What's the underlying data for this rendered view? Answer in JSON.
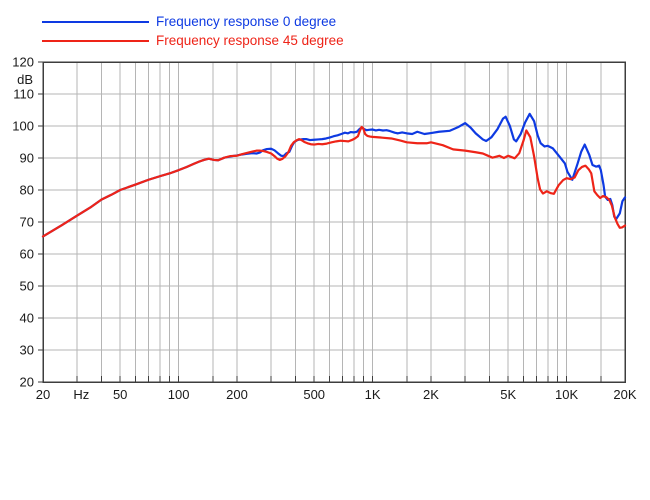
{
  "legend": {
    "items": [
      {
        "id": "0deg",
        "label": "Frequency response 0 degree",
        "color": "#0e3ae2"
      },
      {
        "id": "45deg",
        "label": "Frequency response 45 degree",
        "color": "#ee2418"
      }
    ]
  },
  "chart_data": {
    "type": "line",
    "title": "",
    "x_axis": {
      "scale": "log",
      "min": 20,
      "max": 20000,
      "unit_label": "Hz",
      "unit_label_freq": 31.5,
      "tick_labels": [
        {
          "f": 20,
          "label": "20"
        },
        {
          "f": 50,
          "label": "50"
        },
        {
          "f": 100,
          "label": "100"
        },
        {
          "f": 200,
          "label": "200"
        },
        {
          "f": 500,
          "label": "500"
        },
        {
          "f": 1000,
          "label": "1K"
        },
        {
          "f": 2000,
          "label": "2K"
        },
        {
          "f": 5000,
          "label": "5K"
        },
        {
          "f": 10000,
          "label": "10K"
        },
        {
          "f": 20000,
          "label": "20K"
        }
      ],
      "minor_grid_pattern": [
        1,
        1.5,
        2,
        3,
        4,
        5,
        6,
        7,
        8,
        9
      ]
    },
    "y_axis": {
      "min": 20,
      "max": 120,
      "step": 10,
      "unit_label": "dB",
      "tick_labels": [
        "120",
        "110",
        "100",
        "90",
        "80",
        "70",
        "60",
        "50",
        "40",
        "30",
        "20"
      ]
    },
    "grid_on": true,
    "grid_color": "#b5b5b5",
    "axis_color": "#3d3d3d",
    "legend_position": "top-left",
    "series": [
      {
        "name": "Frequency response 0 degree",
        "color": "#0e3ae2",
        "points": [
          [
            20,
            65.5
          ],
          [
            25,
            69
          ],
          [
            30,
            72
          ],
          [
            35,
            74.5
          ],
          [
            40,
            77
          ],
          [
            45,
            78.5
          ],
          [
            50,
            80
          ],
          [
            60,
            81.7
          ],
          [
            70,
            83.2
          ],
          [
            80,
            84.3
          ],
          [
            90,
            85.2
          ],
          [
            100,
            86.2
          ],
          [
            110,
            87.2
          ],
          [
            120,
            88.2
          ],
          [
            128,
            88.9
          ],
          [
            135,
            89.4
          ],
          [
            143,
            89.8
          ],
          [
            152,
            89.4
          ],
          [
            160,
            89.3
          ],
          [
            172,
            90.1
          ],
          [
            185,
            90.5
          ],
          [
            200,
            90.8
          ],
          [
            212,
            91.1
          ],
          [
            225,
            91.3
          ],
          [
            240,
            91.5
          ],
          [
            252,
            91.4
          ],
          [
            262,
            91.7
          ],
          [
            272,
            92.4
          ],
          [
            285,
            92.8
          ],
          [
            300,
            92.9
          ],
          [
            312,
            92.4
          ],
          [
            325,
            91.5
          ],
          [
            338,
            90.7
          ],
          [
            348,
            90.6
          ],
          [
            360,
            91.5
          ],
          [
            372,
            91.9
          ],
          [
            385,
            93.9
          ],
          [
            395,
            95
          ],
          [
            410,
            95.6
          ],
          [
            425,
            95.8
          ],
          [
            440,
            95.9
          ],
          [
            455,
            95.9
          ],
          [
            475,
            95.6
          ],
          [
            500,
            95.7
          ],
          [
            525,
            95.8
          ],
          [
            550,
            95.9
          ],
          [
            575,
            96.1
          ],
          [
            600,
            96.4
          ],
          [
            630,
            96.8
          ],
          [
            660,
            97.1
          ],
          [
            690,
            97.5
          ],
          [
            720,
            97.9
          ],
          [
            745,
            97.7
          ],
          [
            770,
            98.1
          ],
          [
            800,
            98
          ],
          [
            830,
            98.2
          ],
          [
            858,
            99.1
          ],
          [
            880,
            99.5
          ],
          [
            905,
            99
          ],
          [
            930,
            98.7
          ],
          [
            960,
            98.8
          ],
          [
            1000,
            98.9
          ],
          [
            1040,
            98.6
          ],
          [
            1080,
            98.8
          ],
          [
            1130,
            98.6
          ],
          [
            1180,
            98.7
          ],
          [
            1230,
            98.4
          ],
          [
            1300,
            97.9
          ],
          [
            1350,
            97.7
          ],
          [
            1420,
            98
          ],
          [
            1500,
            97.7
          ],
          [
            1600,
            97.5
          ],
          [
            1700,
            98.2
          ],
          [
            1850,
            97.5
          ],
          [
            2000,
            97.8
          ],
          [
            2200,
            98.2
          ],
          [
            2500,
            98.5
          ],
          [
            2750,
            99.6
          ],
          [
            3000,
            100.9
          ],
          [
            3200,
            99.5
          ],
          [
            3400,
            97.7
          ],
          [
            3700,
            95.8
          ],
          [
            3850,
            95.3
          ],
          [
            4100,
            96.5
          ],
          [
            4400,
            99
          ],
          [
            4700,
            102.3
          ],
          [
            4850,
            102.9
          ],
          [
            5100,
            100
          ],
          [
            5350,
            95.8
          ],
          [
            5500,
            95.2
          ],
          [
            5800,
            97.5
          ],
          [
            6100,
            101
          ],
          [
            6450,
            103.8
          ],
          [
            6800,
            101.5
          ],
          [
            7100,
            97
          ],
          [
            7350,
            94.6
          ],
          [
            7700,
            93.6
          ],
          [
            8000,
            93.8
          ],
          [
            8500,
            93
          ],
          [
            9200,
            90.4
          ],
          [
            9800,
            88.3
          ],
          [
            10100,
            85.7
          ],
          [
            10700,
            83.2
          ],
          [
            11400,
            88.3
          ],
          [
            11900,
            92
          ],
          [
            12400,
            94.2
          ],
          [
            13100,
            90.9
          ],
          [
            13600,
            87.8
          ],
          [
            14200,
            87.3
          ],
          [
            14700,
            87.6
          ],
          [
            15000,
            86.3
          ],
          [
            15500,
            81.6
          ],
          [
            15800,
            77.9
          ],
          [
            16300,
            76.9
          ],
          [
            16800,
            77.2
          ],
          [
            17200,
            75.3
          ],
          [
            17600,
            71.7
          ],
          [
            18000,
            70.9
          ],
          [
            18800,
            72.7
          ],
          [
            19400,
            76.5
          ],
          [
            20000,
            77.7
          ]
        ]
      },
      {
        "name": "Frequency response 45 degree",
        "color": "#ee2418",
        "points": [
          [
            20,
            65.5
          ],
          [
            25,
            69
          ],
          [
            30,
            72
          ],
          [
            35,
            74.5
          ],
          [
            40,
            77
          ],
          [
            45,
            78.5
          ],
          [
            50,
            80
          ],
          [
            60,
            81.7
          ],
          [
            70,
            83.2
          ],
          [
            80,
            84.3
          ],
          [
            90,
            85.2
          ],
          [
            100,
            86.2
          ],
          [
            110,
            87.2
          ],
          [
            120,
            88.2
          ],
          [
            128,
            88.9
          ],
          [
            135,
            89.4
          ],
          [
            143,
            89.8
          ],
          [
            152,
            89.4
          ],
          [
            160,
            89.3
          ],
          [
            172,
            90.1
          ],
          [
            185,
            90.6
          ],
          [
            200,
            90.7
          ],
          [
            212,
            91.2
          ],
          [
            225,
            91.6
          ],
          [
            240,
            92
          ],
          [
            252,
            92.3
          ],
          [
            262,
            92.3
          ],
          [
            272,
            92.2
          ],
          [
            285,
            91.9
          ],
          [
            300,
            91.4
          ],
          [
            312,
            90.6
          ],
          [
            322,
            89.8
          ],
          [
            332,
            89.4
          ],
          [
            342,
            89.7
          ],
          [
            355,
            90.5
          ],
          [
            368,
            91.8
          ],
          [
            380,
            93.8
          ],
          [
            392,
            94.9
          ],
          [
            405,
            95.5
          ],
          [
            418,
            95.9
          ],
          [
            430,
            95.6
          ],
          [
            445,
            95
          ],
          [
            462,
            94.6
          ],
          [
            480,
            94.3
          ],
          [
            500,
            94.2
          ],
          [
            525,
            94.4
          ],
          [
            550,
            94.3
          ],
          [
            580,
            94.5
          ],
          [
            615,
            94.9
          ],
          [
            650,
            95.2
          ],
          [
            685,
            95.4
          ],
          [
            720,
            95.3
          ],
          [
            750,
            95.2
          ],
          [
            780,
            95.6
          ],
          [
            810,
            96.1
          ],
          [
            840,
            96.8
          ],
          [
            860,
            98.5
          ],
          [
            878,
            99.7
          ],
          [
            895,
            99.3
          ],
          [
            915,
            97.5
          ],
          [
            940,
            96.9
          ],
          [
            970,
            96.7
          ],
          [
            1000,
            96.6
          ],
          [
            1100,
            96.4
          ],
          [
            1250,
            96.1
          ],
          [
            1400,
            95.4
          ],
          [
            1500,
            94.9
          ],
          [
            1700,
            94.6
          ],
          [
            1900,
            94.6
          ],
          [
            2000,
            94.9
          ],
          [
            2100,
            94.6
          ],
          [
            2300,
            94
          ],
          [
            2600,
            92.7
          ],
          [
            3000,
            92.3
          ],
          [
            3400,
            91.8
          ],
          [
            3700,
            91.4
          ],
          [
            3900,
            90.8
          ],
          [
            4150,
            90.1
          ],
          [
            4500,
            90.7
          ],
          [
            4750,
            90
          ],
          [
            5000,
            90.7
          ],
          [
            5200,
            90.3
          ],
          [
            5400,
            89.9
          ],
          [
            5700,
            91.5
          ],
          [
            6000,
            95.5
          ],
          [
            6200,
            98.6
          ],
          [
            6500,
            96.5
          ],
          [
            6800,
            90.5
          ],
          [
            7100,
            83.5
          ],
          [
            7300,
            80.2
          ],
          [
            7550,
            78.9
          ],
          [
            7900,
            79.6
          ],
          [
            8300,
            79
          ],
          [
            8600,
            78.8
          ],
          [
            9100,
            81.5
          ],
          [
            9600,
            83.1
          ],
          [
            10000,
            83.7
          ],
          [
            10500,
            83.4
          ],
          [
            11000,
            83.9
          ],
          [
            11500,
            86.2
          ],
          [
            12000,
            87.2
          ],
          [
            12500,
            87.6
          ],
          [
            13000,
            86.5
          ],
          [
            13400,
            85.2
          ],
          [
            13900,
            79.6
          ],
          [
            14400,
            78.4
          ],
          [
            14900,
            77.5
          ],
          [
            15400,
            78.1
          ],
          [
            16000,
            77.8
          ],
          [
            16600,
            76.9
          ],
          [
            17100,
            75.2
          ],
          [
            17700,
            71.5
          ],
          [
            18300,
            69.4
          ],
          [
            18800,
            68.2
          ],
          [
            19300,
            68.3
          ],
          [
            20000,
            68.9
          ]
        ]
      }
    ]
  }
}
